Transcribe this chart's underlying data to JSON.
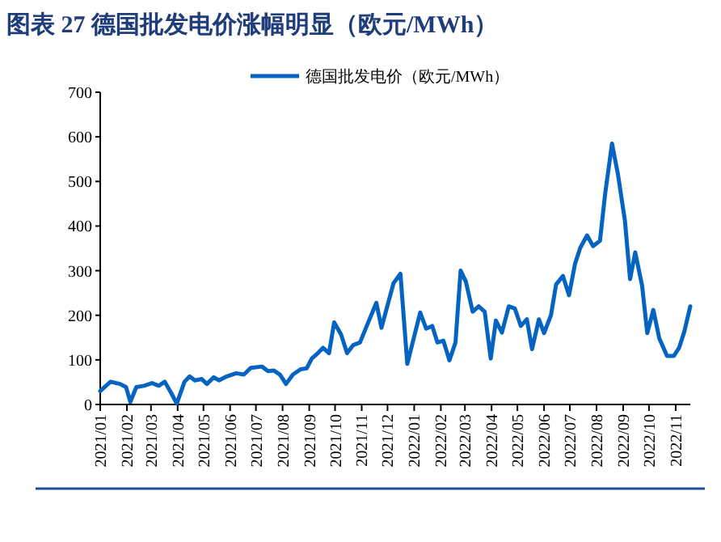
{
  "chart_data": {
    "type": "line",
    "title": "图表 27  德国批发电价涨幅明显（欧元/MWh）",
    "legend": "top",
    "grid": false,
    "marker": "none",
    "line_style": "solid",
    "xlim": [
      "2021-01-01",
      "2022-11-18"
    ],
    "ylim": [
      0,
      700
    ],
    "yticks": [
      0,
      100,
      200,
      300,
      400,
      500,
      600,
      700
    ],
    "xticks": [
      {
        "value": "2021-01",
        "label": "2021/01"
      },
      {
        "value": "2021-02",
        "label": "2021/02"
      },
      {
        "value": "2021-03",
        "label": "2021/03"
      },
      {
        "value": "2021-04",
        "label": "2021/04"
      },
      {
        "value": "2021-05",
        "label": "2021/05"
      },
      {
        "value": "2021-06",
        "label": "2021/06"
      },
      {
        "value": "2021-07",
        "label": "2021/07"
      },
      {
        "value": "2021-08",
        "label": "2021/08"
      },
      {
        "value": "2021-09",
        "label": "2021/09"
      },
      {
        "value": "2021-10",
        "label": "2021/10"
      },
      {
        "value": "2021-11",
        "label": "2021/11"
      },
      {
        "value": "2021-12",
        "label": "2021/12"
      },
      {
        "value": "2022-01",
        "label": "2022/01"
      },
      {
        "value": "2022-02",
        "label": "2022/02"
      },
      {
        "value": "2022-03",
        "label": "2022/03"
      },
      {
        "value": "2022-04",
        "label": "2022/04"
      },
      {
        "value": "2022-05",
        "label": "2022/05"
      },
      {
        "value": "2022-06",
        "label": "2022/06"
      },
      {
        "value": "2022-07",
        "label": "2022/07"
      },
      {
        "value": "2022-08",
        "label": "2022/08"
      },
      {
        "value": "2022-09",
        "label": "2022/09"
      },
      {
        "value": "2022-10",
        "label": "2022/10"
      },
      {
        "value": "2022-11",
        "label": "2022/11"
      }
    ],
    "series": [
      {
        "name": "德国批发电价（欧元/MWh）",
        "color": "#0563c1",
        "x": [
          "2021-01-01",
          "2021-01-13",
          "2021-01-24",
          "2021-01-31",
          "2021-02-05",
          "2021-02-12",
          "2021-02-21",
          "2021-03-02",
          "2021-03-10",
          "2021-03-17",
          "2021-03-25",
          "2021-03-31",
          "2021-04-09",
          "2021-04-15",
          "2021-04-21",
          "2021-04-29",
          "2021-05-05",
          "2021-05-13",
          "2021-05-19",
          "2021-05-28",
          "2021-06-08",
          "2021-06-17",
          "2021-06-25",
          "2021-07-08",
          "2021-07-15",
          "2021-07-22",
          "2021-07-29",
          "2021-08-05",
          "2021-08-13",
          "2021-08-22",
          "2021-08-29",
          "2021-09-04",
          "2021-09-11",
          "2021-09-17",
          "2021-09-24",
          "2021-09-30",
          "2021-10-08",
          "2021-10-15",
          "2021-10-22",
          "2021-10-30",
          "2021-11-06",
          "2021-11-18",
          "2021-11-24",
          "2021-12-08",
          "2021-12-16",
          "2021-12-24",
          "2021-12-31",
          "2022-01-08",
          "2022-01-15",
          "2022-01-22",
          "2022-01-28",
          "2022-02-04",
          "2022-02-11",
          "2022-02-18",
          "2022-02-24",
          "2022-03-02",
          "2022-03-10",
          "2022-03-17",
          "2022-03-24",
          "2022-03-31",
          "2022-04-06",
          "2022-04-13",
          "2022-04-21",
          "2022-04-28",
          "2022-05-05",
          "2022-05-12",
          "2022-05-18",
          "2022-05-26",
          "2022-06-01",
          "2022-06-09",
          "2022-06-15",
          "2022-06-23",
          "2022-06-30",
          "2022-07-07",
          "2022-07-13",
          "2022-07-21",
          "2022-07-28",
          "2022-08-05",
          "2022-08-11",
          "2022-08-19",
          "2022-08-26",
          "2022-09-03",
          "2022-09-09",
          "2022-09-15",
          "2022-09-23",
          "2022-09-29",
          "2022-10-06",
          "2022-10-13",
          "2022-10-22",
          "2022-10-30",
          "2022-11-05",
          "2022-11-11",
          "2022-11-18"
        ],
        "values": [
          30,
          51,
          46,
          39,
          6,
          39,
          42,
          48,
          42,
          51,
          24,
          2,
          51,
          63,
          54,
          57,
          46,
          61,
          54,
          63,
          70,
          67,
          82,
          85,
          75,
          76,
          67,
          46,
          67,
          79,
          81,
          103,
          115,
          127,
          115,
          184,
          157,
          115,
          133,
          139,
          172,
          228,
          172,
          272,
          293,
          91,
          145,
          206,
          170,
          176,
          139,
          143,
          99,
          139,
          300,
          276,
          208,
          220,
          208,
          103,
          188,
          161,
          220,
          215,
          176,
          191,
          124,
          191,
          160,
          200,
          269,
          288,
          245,
          315,
          351,
          379,
          355,
          367,
          472,
          585,
          515,
          412,
          281,
          341,
          266,
          160,
          212,
          148,
          109,
          109,
          127,
          163,
          220
        ]
      }
    ]
  }
}
